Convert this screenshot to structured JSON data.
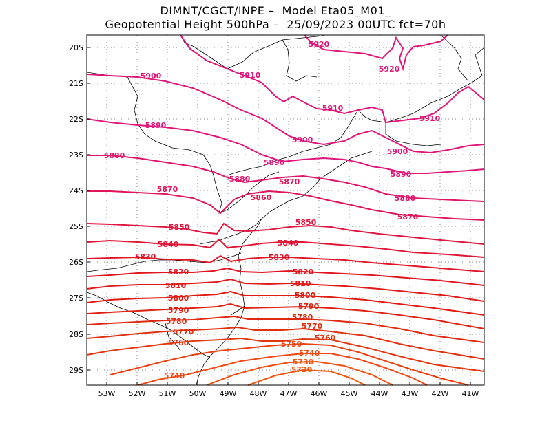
{
  "header": {
    "line1": "DIMNT/CGCT/INPE –  Model Eta05_M01_",
    "line2": "Geopotential Height 500hPa –  25/09/2023 00UTC fct=70h"
  },
  "map": {
    "lat_ticks": [
      "20S",
      "21S",
      "22S",
      "23S",
      "24S",
      "25S",
      "26S",
      "27S",
      "28S",
      "29S"
    ],
    "lon_ticks": [
      "53W",
      "52W",
      "51W",
      "50W",
      "49W",
      "48W",
      "47W",
      "46W",
      "45W",
      "44W",
      "43W",
      "42W",
      "41W"
    ],
    "contour_labels": [
      {
        "text": "5920",
        "color": "#e0157a"
      },
      {
        "text": "5920",
        "color": "#e0157a"
      },
      {
        "text": "5910",
        "color": "#e0157a"
      },
      {
        "text": "5910",
        "color": "#e0157a"
      },
      {
        "text": "5910",
        "color": "#e0157a"
      },
      {
        "text": "5900",
        "color": "#e0157a"
      },
      {
        "text": "5900",
        "color": "#e0157a"
      },
      {
        "text": "5900",
        "color": "#e0157a"
      },
      {
        "text": "5890",
        "color": "#e0157a"
      },
      {
        "text": "5890",
        "color": "#e0157a"
      },
      {
        "text": "5890",
        "color": "#e0157a"
      },
      {
        "text": "5880",
        "color": "#e0156a"
      },
      {
        "text": "5880",
        "color": "#e0156a"
      },
      {
        "text": "5880",
        "color": "#e0156a"
      },
      {
        "text": "5870",
        "color": "#e0155a"
      },
      {
        "text": "5870",
        "color": "#e0155a"
      },
      {
        "text": "5870",
        "color": "#e0155a"
      },
      {
        "text": "5860",
        "color": "#e0154a"
      },
      {
        "text": "5850",
        "color": "#e01540"
      },
      {
        "text": "5850",
        "color": "#e01540"
      },
      {
        "text": "5840",
        "color": "#e01535"
      },
      {
        "text": "5840",
        "color": "#e01535"
      },
      {
        "text": "5830",
        "color": "#e0152a"
      },
      {
        "text": "5830",
        "color": "#e0152a"
      },
      {
        "text": "5820",
        "color": "#e01520"
      },
      {
        "text": "5820",
        "color": "#e01520"
      },
      {
        "text": "5810",
        "color": "#e01818"
      },
      {
        "text": "5810",
        "color": "#e01818"
      },
      {
        "text": "5800",
        "color": "#e01a10"
      },
      {
        "text": "5800",
        "color": "#e01a10"
      },
      {
        "text": "5790",
        "color": "#e02010"
      },
      {
        "text": "5790",
        "color": "#e02010"
      },
      {
        "text": "5780",
        "color": "#e02810"
      },
      {
        "text": "5780",
        "color": "#e02810"
      },
      {
        "text": "5770",
        "color": "#e03010"
      },
      {
        "text": "5770",
        "color": "#e03010"
      },
      {
        "text": "5760",
        "color": "#e03810"
      },
      {
        "text": "5760",
        "color": "#e03810"
      },
      {
        "text": "5750",
        "color": "#e84010"
      },
      {
        "text": "5740",
        "color": "#f04810"
      },
      {
        "text": "5740",
        "color": "#f04810"
      },
      {
        "text": "5730",
        "color": "#f05010"
      },
      {
        "text": "5720",
        "color": "#f05810"
      }
    ],
    "colors": {
      "grid": "#888888",
      "border": "#000000",
      "coast": "#000000"
    }
  }
}
